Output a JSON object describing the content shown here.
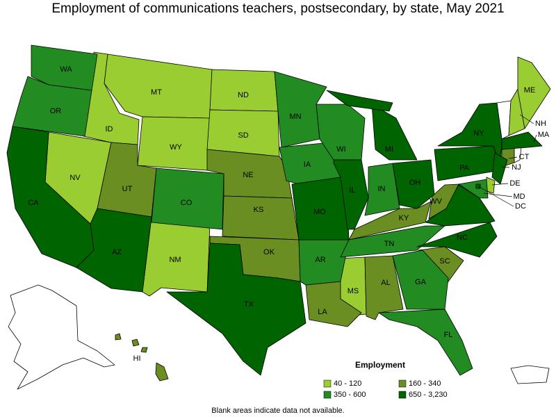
{
  "map_data": {
    "title": "Employment of communications teachers, postsecondary, by state, May 2021",
    "legend": {
      "title": "Employment",
      "items": [
        {
          "label": "40 - 120",
          "color": "#9acd32",
          "states": [
            "NV",
            "ID",
            "MT",
            "WY",
            "NM",
            "ND",
            "SD",
            "MS",
            "NH",
            "ME",
            "DE"
          ]
        },
        {
          "label": "160 - 340",
          "color": "#6b8e23",
          "states": [
            "UT",
            "NE",
            "KS",
            "OK",
            "LA",
            "KY",
            "AL",
            "SC",
            "WV",
            "CT",
            "HI"
          ]
        },
        {
          "label": "350 - 600",
          "color": "#228b22",
          "states": [
            "WA",
            "OR",
            "CO",
            "MN",
            "IA",
            "AR",
            "WI",
            "IN",
            "TN",
            "GA",
            "FL",
            "MD"
          ]
        },
        {
          "label": "650 - 3,230",
          "color": "#006400",
          "states": [
            "CA",
            "AZ",
            "TX",
            "MO",
            "IL",
            "MI",
            "OH",
            "NC",
            "PA",
            "NY",
            "MA",
            "NJ",
            "DC"
          ]
        }
      ]
    },
    "note": "Blank areas indicate data not available."
  }
}
